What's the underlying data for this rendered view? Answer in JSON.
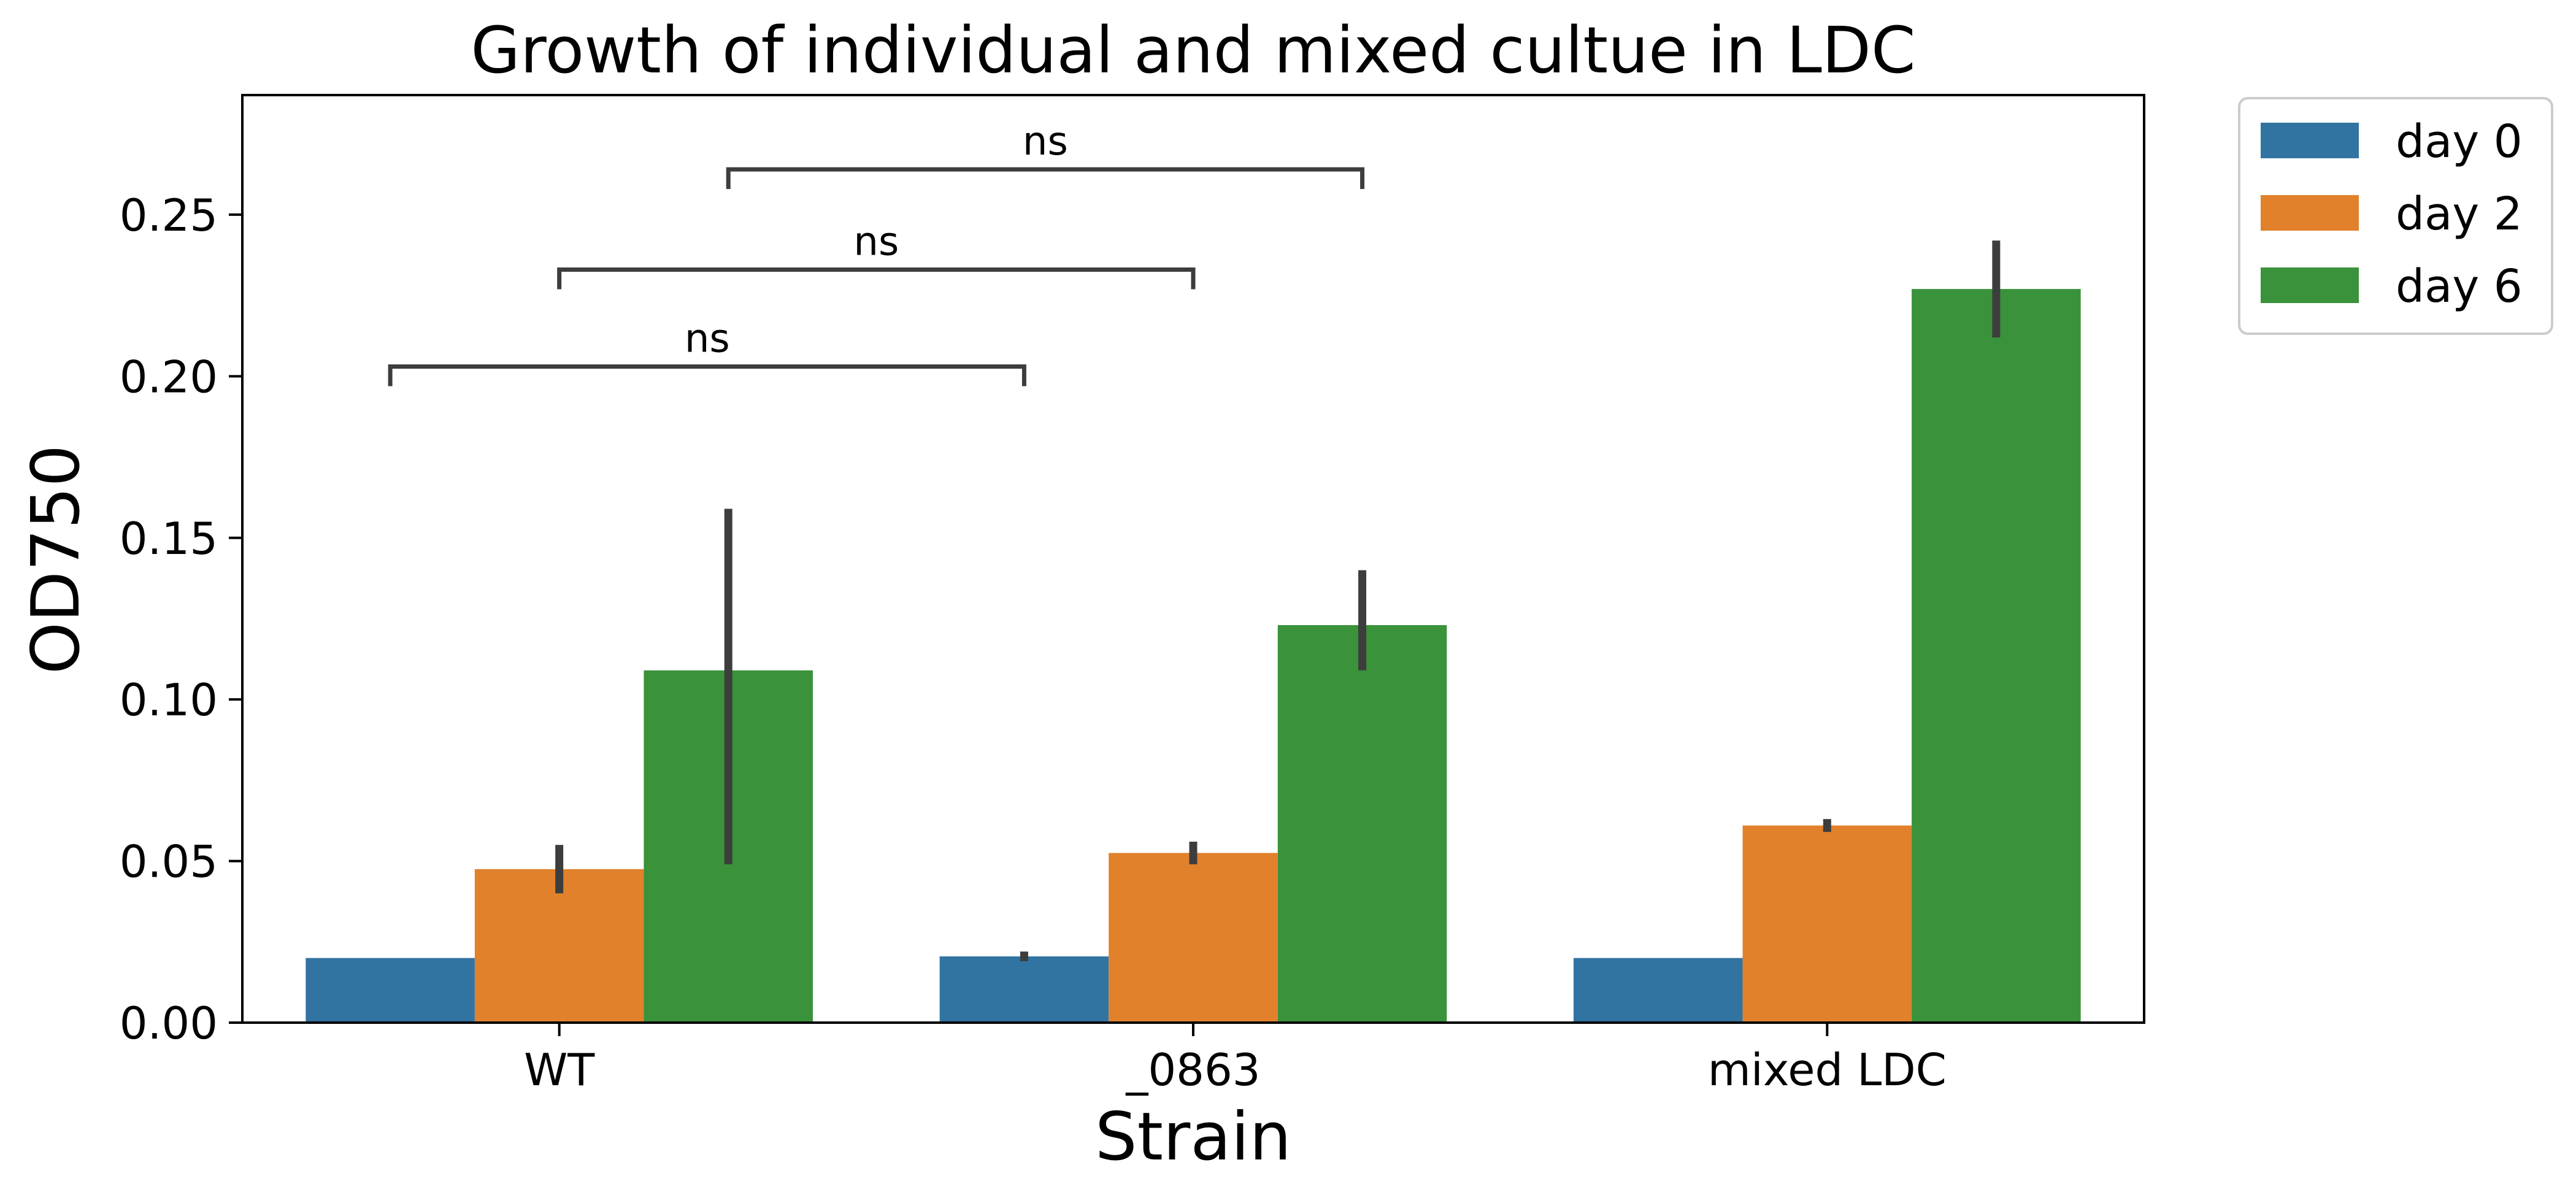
{
  "chart_data": {
    "type": "bar",
    "title": "Growth of individual and mixed cultue in LDC",
    "xlabel": "Strain",
    "ylabel": "OD750",
    "categories": [
      "WT",
      "_0863",
      "mixed LDC"
    ],
    "ylim": [
      0,
      0.287
    ],
    "yticks": [
      "0.00",
      "0.05",
      "0.10",
      "0.15",
      "0.20",
      "0.25"
    ],
    "ytick_values": [
      0,
      0.05,
      0.1,
      0.15,
      0.2,
      0.25
    ],
    "grid": false,
    "legend": {
      "position": "outside-top-right"
    },
    "series": [
      {
        "name": "day 0",
        "color": "#3274a1",
        "values": [
          0.02,
          0.0205,
          0.02
        ],
        "err_low": [
          0.02,
          0.019,
          0.02
        ],
        "err_high": [
          0.02,
          0.022,
          0.02
        ]
      },
      {
        "name": "day 2",
        "color": "#e1812c",
        "values": [
          0.0475,
          0.0525,
          0.061
        ],
        "err_low": [
          0.04,
          0.049,
          0.059
        ],
        "err_high": [
          0.055,
          0.056,
          0.063
        ]
      },
      {
        "name": "day 6",
        "color": "#3a923a",
        "values": [
          0.109,
          0.123,
          0.227
        ],
        "err_low": [
          0.049,
          0.109,
          0.212
        ],
        "err_high": [
          0.159,
          0.14,
          0.242
        ]
      }
    ],
    "annotations": [
      {
        "from": [
          "WT",
          "day 0"
        ],
        "to": [
          "_0863",
          "day 0"
        ],
        "label": "ns",
        "y": 0.203
      },
      {
        "from": [
          "WT",
          "day 2"
        ],
        "to": [
          "_0863",
          "day 2"
        ],
        "label": "ns",
        "y": 0.233
      },
      {
        "from": [
          "WT",
          "day 6"
        ],
        "to": [
          "_0863",
          "day 6"
        ],
        "label": "ns",
        "y": 0.264
      }
    ]
  }
}
